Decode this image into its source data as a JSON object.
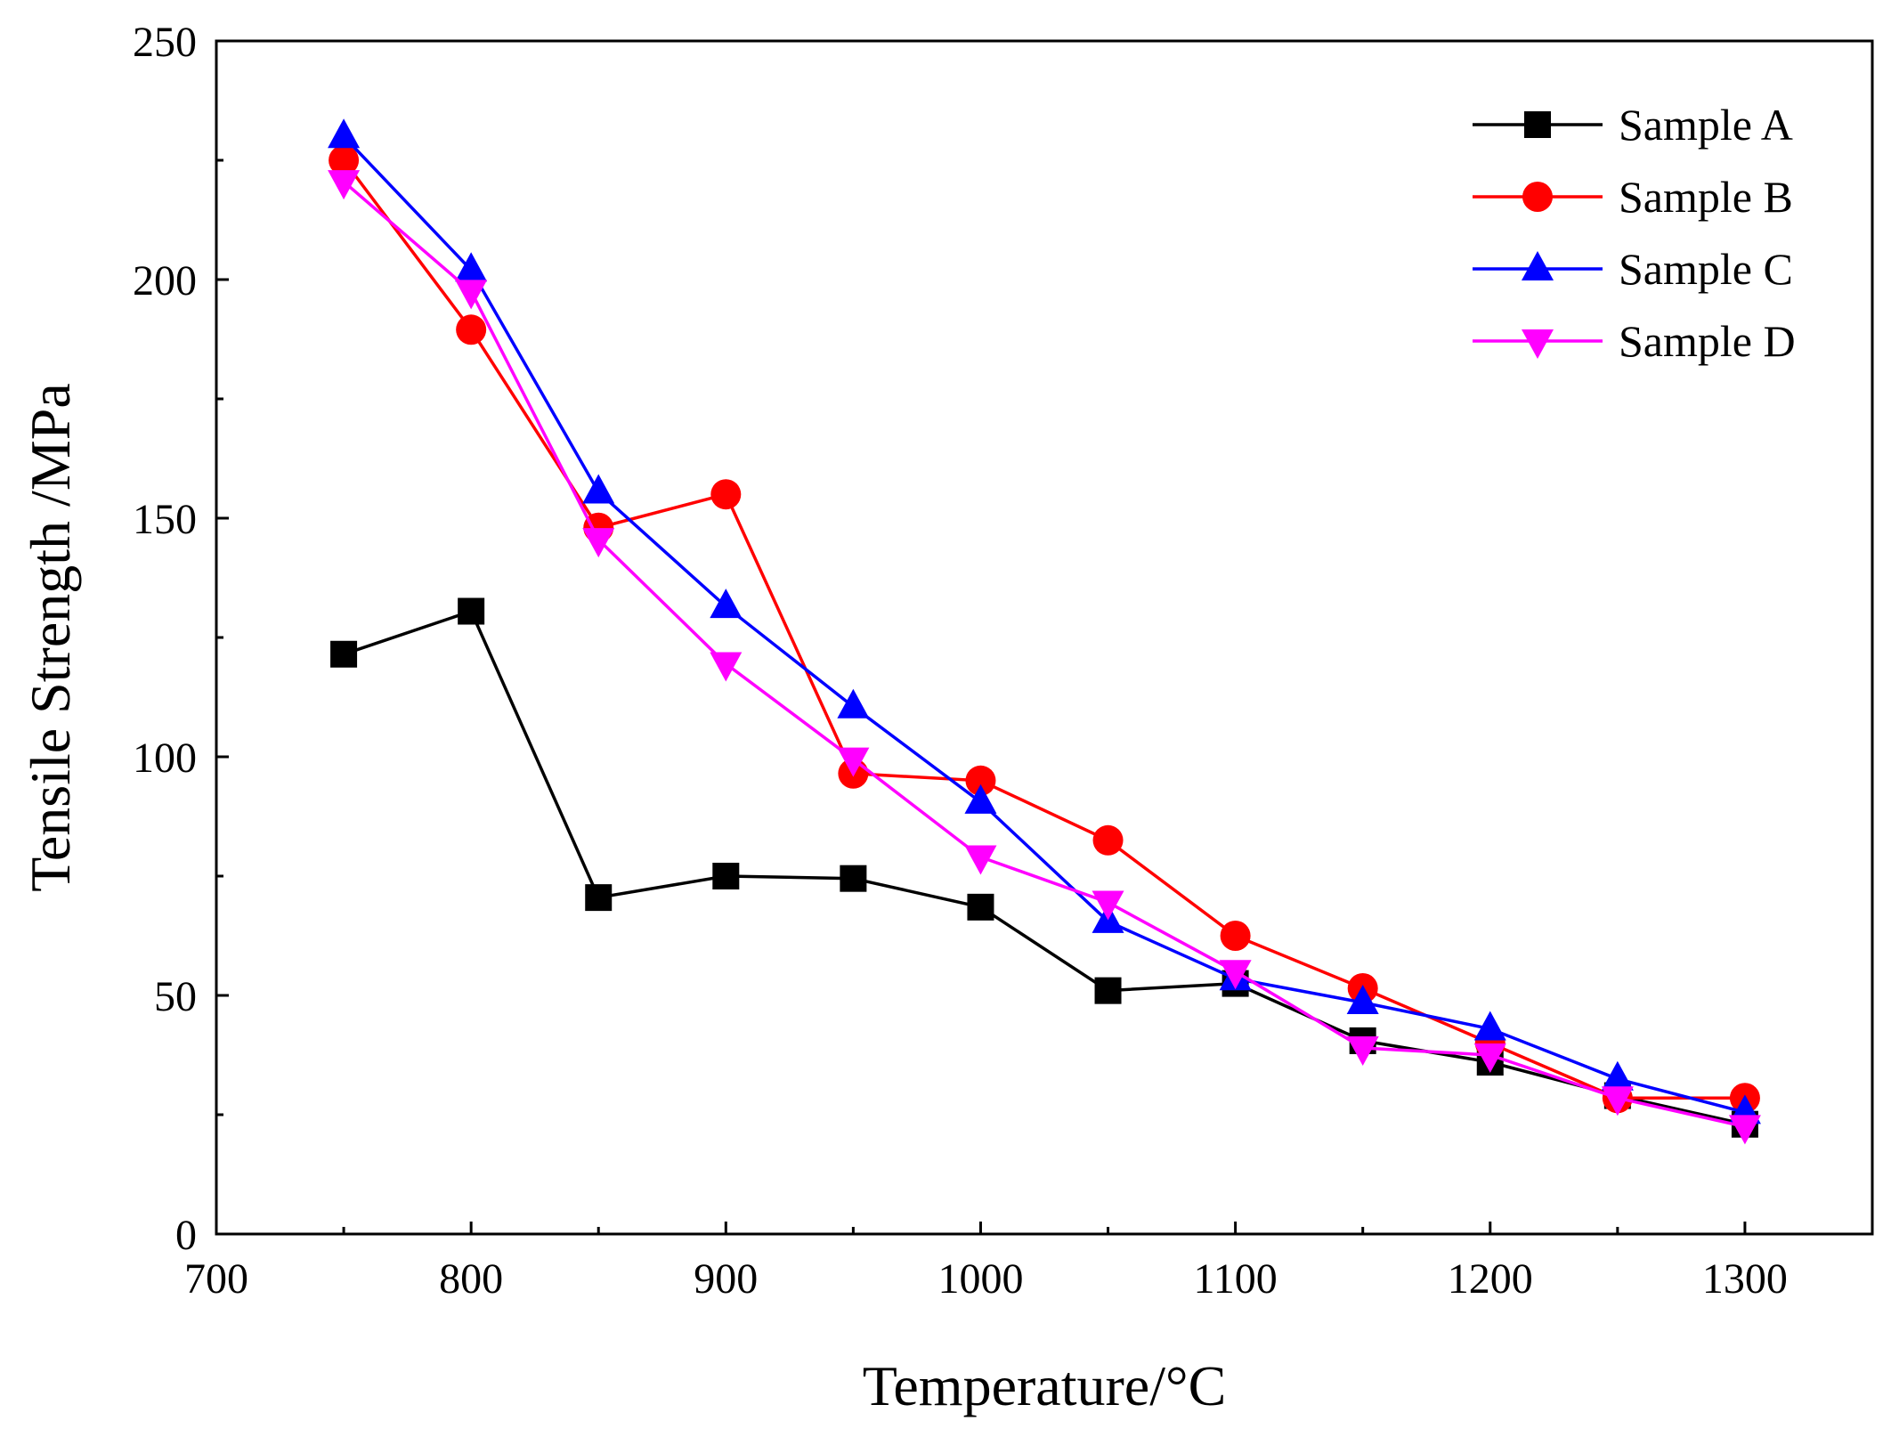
{
  "chart_data": {
    "type": "line",
    "title": "",
    "xlabel": "Temperature/°C",
    "ylabel": "Tensile Strength /MPa",
    "xlim": [
      700,
      1350
    ],
    "ylim": [
      0,
      250
    ],
    "xticks": [
      700,
      800,
      900,
      1000,
      1100,
      1200,
      1300
    ],
    "yticks": [
      0,
      50,
      100,
      150,
      200,
      250
    ],
    "grid": false,
    "legend_position": "top-right",
    "x": [
      750,
      800,
      850,
      900,
      950,
      1000,
      1050,
      1100,
      1150,
      1200,
      1250,
      1300
    ],
    "series": [
      {
        "name": "Sample A",
        "color": "#000000",
        "marker": "square",
        "values": [
          121.5,
          130.5,
          70.5,
          75,
          74.5,
          68.5,
          51,
          52.5,
          40.5,
          36,
          29,
          23
        ]
      },
      {
        "name": "Sample B",
        "color": "#ff0000",
        "marker": "circle",
        "values": [
          225,
          189.5,
          148,
          155,
          96.5,
          95,
          82.5,
          62.5,
          51.5,
          40,
          28.5,
          28.5
        ]
      },
      {
        "name": "Sample C",
        "color": "#0000ff",
        "marker": "triangle-up",
        "values": [
          230,
          202,
          155.5,
          131.5,
          110.5,
          90.5,
          65.5,
          53.5,
          48.5,
          43,
          32.5,
          25.5
        ]
      },
      {
        "name": "Sample D",
        "color": "#ff00ff",
        "marker": "triangle-down",
        "values": [
          220.5,
          197.5,
          145.5,
          119.5,
          99.5,
          79,
          69.5,
          55,
          39,
          37.5,
          28.5,
          22.5
        ]
      }
    ]
  }
}
